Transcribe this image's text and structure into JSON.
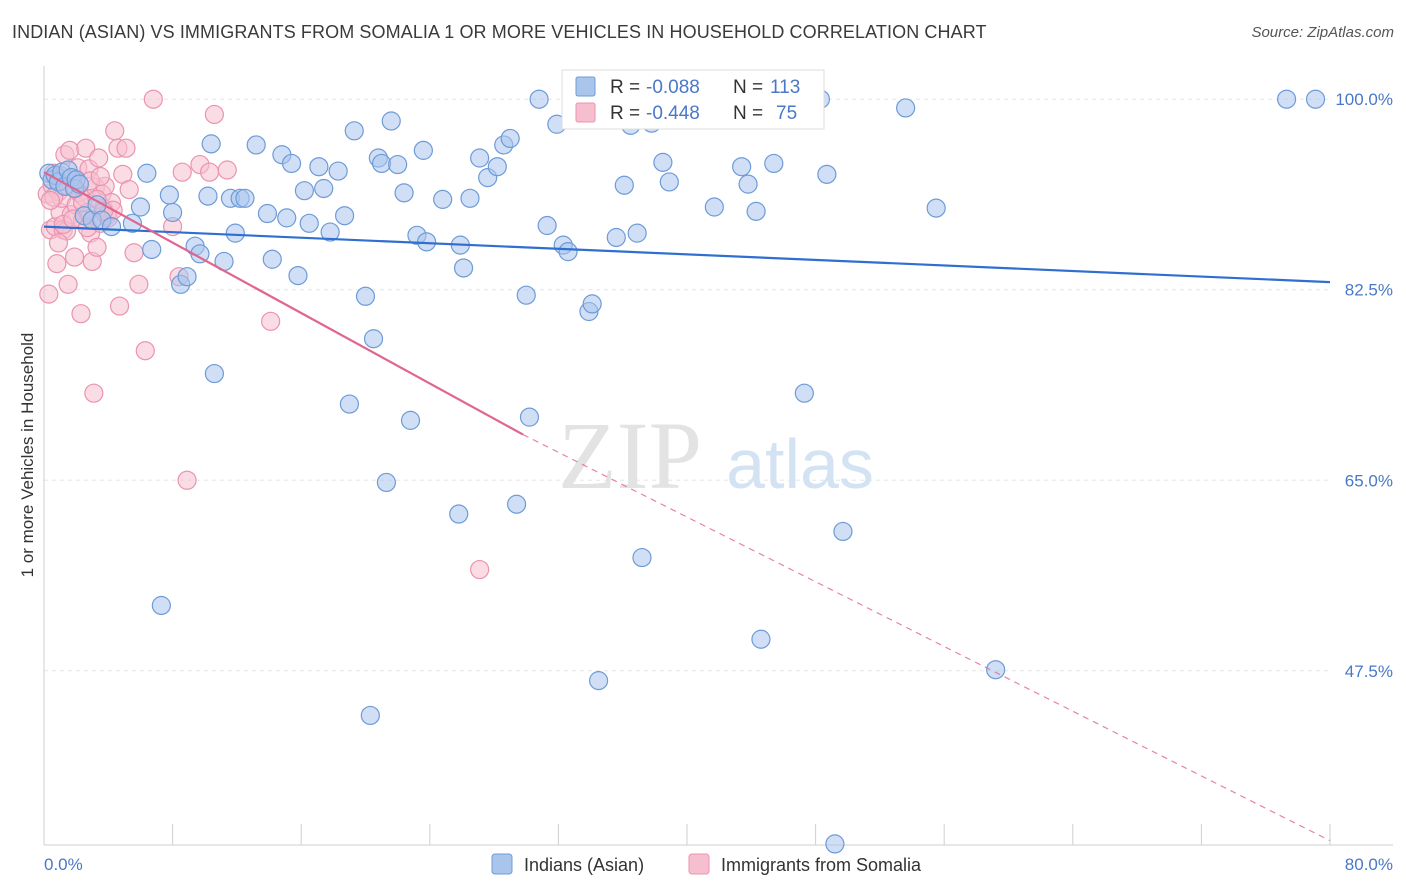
{
  "header": {
    "title": "INDIAN (ASIAN) VS IMMIGRANTS FROM SOMALIA 1 OR MORE VEHICLES IN HOUSEHOLD CORRELATION CHART",
    "source": "Source: ZipAtlas.com"
  },
  "watermark": {
    "zip": "ZIP",
    "atlas": "atlas"
  },
  "colors": {
    "blue_fill": "#a9c5ec",
    "blue_stroke": "#6d9bd8",
    "blue_line": "#2f6fcf",
    "pink_fill": "#f6bfd0",
    "pink_stroke": "#ec93b0",
    "pink_line": "#e06690",
    "axis_text": "#4a78c8"
  },
  "legend_box": {
    "r_label": "R =",
    "n_label": "N =",
    "blue": {
      "r": "-0.088",
      "n": "113"
    },
    "pink": {
      "r": "-0.448",
      "n": "75"
    }
  },
  "chart_data": {
    "type": "scatter",
    "title": "INDIAN (ASIAN) VS IMMIGRANTS FROM SOMALIA 1 OR MORE VEHICLES IN HOUSEHOLD CORRELATION CHART",
    "xlabel": "",
    "ylabel": "1 or more Vehicles in Household",
    "xlim": [
      0,
      80
    ],
    "ylim": [
      31.5,
      102.5
    ],
    "x_tick_labels": {
      "left": "0.0%",
      "right": "80.0%"
    },
    "y_ticks": [
      {
        "value": 100.0,
        "label": "100.0%"
      },
      {
        "value": 82.5,
        "label": "82.5%"
      },
      {
        "value": 65.0,
        "label": "65.0%"
      },
      {
        "value": 47.5,
        "label": "47.5%"
      }
    ],
    "grid": true,
    "legend_position": "bottom-center",
    "series": [
      {
        "name": "Indians (Asian)",
        "color": "#6d9bd8",
        "r": -0.088,
        "n": 113,
        "trend": {
          "x": [
            0,
            80
          ],
          "y": [
            88.3,
            83.2
          ]
        },
        "points": [
          [
            0.3,
            93.2
          ],
          [
            0.5,
            92.6
          ],
          [
            0.7,
            93.0
          ],
          [
            0.9,
            92.4
          ],
          [
            1.1,
            93.3
          ],
          [
            1.3,
            92.0
          ],
          [
            1.5,
            93.5
          ],
          [
            1.7,
            92.8
          ],
          [
            1.9,
            91.8
          ],
          [
            2.0,
            92.6
          ],
          [
            2.2,
            92.2
          ],
          [
            2.5,
            89.3
          ],
          [
            3.0,
            88.9
          ],
          [
            3.3,
            90.3
          ],
          [
            3.6,
            88.9
          ],
          [
            4.2,
            88.3
          ],
          [
            5.5,
            88.6
          ],
          [
            6.0,
            90.1
          ],
          [
            6.4,
            93.2
          ],
          [
            6.7,
            86.2
          ],
          [
            7.8,
            91.2
          ],
          [
            8.0,
            89.6
          ],
          [
            8.5,
            83.0
          ],
          [
            8.9,
            83.7
          ],
          [
            9.4,
            86.5
          ],
          [
            9.7,
            85.8
          ],
          [
            10.2,
            91.1
          ],
          [
            10.4,
            95.9
          ],
          [
            10.6,
            74.8
          ],
          [
            11.2,
            85.1
          ],
          [
            11.6,
            90.9
          ],
          [
            11.9,
            87.7
          ],
          [
            12.2,
            90.9
          ],
          [
            12.5,
            90.9
          ],
          [
            13.2,
            95.8
          ],
          [
            13.9,
            89.5
          ],
          [
            14.2,
            85.3
          ],
          [
            14.8,
            94.9
          ],
          [
            15.1,
            89.1
          ],
          [
            15.4,
            94.1
          ],
          [
            15.8,
            83.8
          ],
          [
            16.2,
            91.6
          ],
          [
            16.5,
            88.6
          ],
          [
            17.1,
            93.8
          ],
          [
            17.4,
            91.8
          ],
          [
            17.8,
            87.8
          ],
          [
            18.3,
            93.4
          ],
          [
            18.7,
            89.3
          ],
          [
            19.0,
            72.0
          ],
          [
            19.3,
            97.1
          ],
          [
            20.0,
            81.9
          ],
          [
            20.5,
            78.0
          ],
          [
            20.8,
            94.6
          ],
          [
            21.0,
            94.1
          ],
          [
            21.6,
            98.0
          ],
          [
            22.0,
            94.0
          ],
          [
            22.4,
            91.4
          ],
          [
            22.8,
            70.5
          ],
          [
            23.2,
            87.5
          ],
          [
            23.6,
            95.3
          ],
          [
            23.8,
            86.9
          ],
          [
            24.8,
            90.8
          ],
          [
            25.9,
            86.6
          ],
          [
            26.1,
            84.5
          ],
          [
            26.5,
            90.9
          ],
          [
            27.1,
            94.6
          ],
          [
            27.6,
            92.8
          ],
          [
            28.2,
            93.8
          ],
          [
            28.6,
            95.8
          ],
          [
            29.0,
            96.4
          ],
          [
            29.4,
            62.8
          ],
          [
            30.0,
            82.0
          ],
          [
            30.8,
            100.0
          ],
          [
            31.3,
            88.4
          ],
          [
            31.9,
            97.7
          ],
          [
            32.3,
            86.6
          ],
          [
            32.6,
            86.0
          ],
          [
            33.9,
            80.5
          ],
          [
            34.1,
            81.2
          ],
          [
            34.5,
            46.6
          ],
          [
            35.6,
            87.3
          ],
          [
            36.1,
            92.1
          ],
          [
            36.5,
            97.6
          ],
          [
            36.9,
            87.7
          ],
          [
            37.2,
            57.9
          ],
          [
            37.8,
            97.8
          ],
          [
            38.5,
            94.2
          ],
          [
            38.9,
            92.4
          ],
          [
            41.7,
            90.1
          ],
          [
            43.4,
            93.8
          ],
          [
            43.8,
            92.2
          ],
          [
            44.3,
            89.7
          ],
          [
            44.6,
            50.4
          ],
          [
            45.4,
            94.1
          ],
          [
            47.3,
            73.0
          ],
          [
            47.9,
            100.0
          ],
          [
            48.3,
            100.0
          ],
          [
            48.7,
            93.1
          ],
          [
            49.2,
            31.6
          ],
          [
            49.7,
            60.3
          ],
          [
            53.6,
            99.2
          ],
          [
            55.5,
            90.0
          ],
          [
            59.2,
            47.6
          ],
          [
            77.3,
            100.0
          ],
          [
            79.1,
            100.0
          ],
          [
            7.3,
            53.5
          ],
          [
            20.3,
            43.4
          ],
          [
            21.3,
            64.8
          ],
          [
            25.8,
            61.9
          ],
          [
            30.2,
            70.8
          ]
        ]
      },
      {
        "name": "Immigrants from Somalia",
        "color": "#ec93b0",
        "r": -0.448,
        "n": 75,
        "trend": {
          "x": [
            0,
            29.8
          ],
          "y": [
            93.3,
            69.2
          ]
        },
        "trend_extension": {
          "x": [
            29.8,
            80
          ],
          "y": [
            69.2,
            31.9
          ]
        },
        "points": [
          [
            0.2,
            91.3
          ],
          [
            0.3,
            82.1
          ],
          [
            0.4,
            88.0
          ],
          [
            0.5,
            92.1
          ],
          [
            0.6,
            93.2
          ],
          [
            0.7,
            88.3
          ],
          [
            0.8,
            84.9
          ],
          [
            0.9,
            91.5
          ],
          [
            1.0,
            89.6
          ],
          [
            1.1,
            90.9
          ],
          [
            1.2,
            88.0
          ],
          [
            1.3,
            94.9
          ],
          [
            1.4,
            87.9
          ],
          [
            1.5,
            83.0
          ],
          [
            1.6,
            95.3
          ],
          [
            1.7,
            89.4
          ],
          [
            1.8,
            92.6
          ],
          [
            1.9,
            85.5
          ],
          [
            2.0,
            90.3
          ],
          [
            2.1,
            93.7
          ],
          [
            2.2,
            91.4
          ],
          [
            2.3,
            80.3
          ],
          [
            2.4,
            88.9
          ],
          [
            2.5,
            91.0
          ],
          [
            2.6,
            95.5
          ],
          [
            2.7,
            89.6
          ],
          [
            2.8,
            93.6
          ],
          [
            2.9,
            87.7
          ],
          [
            3.0,
            85.1
          ],
          [
            3.1,
            73.0
          ],
          [
            3.2,
            91.9
          ],
          [
            3.3,
            86.4
          ],
          [
            3.4,
            94.6
          ],
          [
            3.5,
            88.6
          ],
          [
            3.6,
            91.3
          ],
          [
            3.7,
            90.0
          ],
          [
            3.8,
            92.0
          ],
          [
            3.9,
            89.3
          ],
          [
            4.0,
            89.1
          ],
          [
            4.2,
            90.5
          ],
          [
            4.3,
            89.8
          ],
          [
            4.4,
            97.1
          ],
          [
            4.6,
            95.5
          ],
          [
            4.7,
            81.0
          ],
          [
            4.9,
            93.1
          ],
          [
            5.1,
            95.5
          ],
          [
            5.3,
            91.7
          ],
          [
            5.6,
            85.9
          ],
          [
            5.9,
            83.0
          ],
          [
            6.3,
            76.9
          ],
          [
            6.8,
            100.0
          ],
          [
            8.0,
            88.3
          ],
          [
            8.4,
            83.7
          ],
          [
            8.6,
            93.3
          ],
          [
            8.9,
            65.0
          ],
          [
            9.7,
            94.0
          ],
          [
            10.3,
            93.3
          ],
          [
            10.6,
            98.6
          ],
          [
            11.4,
            93.5
          ],
          [
            14.1,
            79.6
          ],
          [
            27.1,
            56.8
          ],
          [
            0.6,
            91.0
          ],
          [
            1.0,
            93.0
          ],
          [
            1.5,
            92.0
          ],
          [
            2.0,
            91.8
          ],
          [
            2.4,
            90.5
          ],
          [
            2.9,
            92.5
          ],
          [
            3.3,
            90.8
          ],
          [
            3.7,
            89.7
          ],
          [
            1.2,
            88.5
          ],
          [
            0.4,
            90.7
          ],
          [
            1.8,
            89.0
          ],
          [
            2.7,
            88.2
          ],
          [
            0.9,
            86.8
          ],
          [
            3.5,
            92.9
          ]
        ]
      }
    ]
  }
}
